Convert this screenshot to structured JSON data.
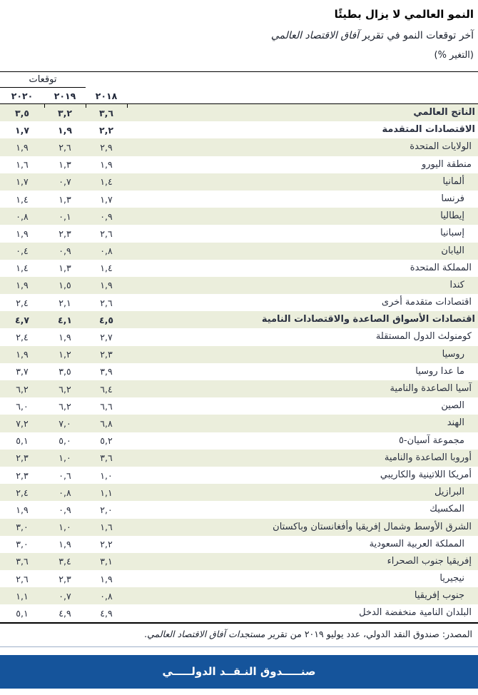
{
  "header": {
    "title": "النمو العالمي لا يزال بطيئًا",
    "subtitle_prefix": "آخر توقعات النمو في تقرير ",
    "subtitle_italic": "آفاق الاقتصاد العالمي",
    "unit_note": "(التغير %)"
  },
  "table": {
    "projections_label": "توقعات",
    "years": {
      "y2018": "٢٠١٨",
      "y2019": "٢٠١٩",
      "y2020": "٢٠٢٠"
    },
    "rows": [
      {
        "label": "الناتج العالمي",
        "bold": true,
        "indent": 0,
        "y2018": "٣,٦",
        "y2019": "٣,٢",
        "y2020": "٣,٥"
      },
      {
        "label": "الاقتصادات المتقدمة",
        "bold": true,
        "indent": 0,
        "y2018": "٢,٢",
        "y2019": "١,٩",
        "y2020": "١,٧"
      },
      {
        "label": "الولايات المتحدة",
        "bold": false,
        "indent": 1,
        "y2018": "٢,٩",
        "y2019": "٢,٦",
        "y2020": "١,٩"
      },
      {
        "label": "منطقة اليورو",
        "bold": false,
        "indent": 1,
        "y2018": "١,٩",
        "y2019": "١,٣",
        "y2020": "١,٦"
      },
      {
        "label": "ألمانيا",
        "bold": false,
        "indent": 2,
        "y2018": "١,٤",
        "y2019": "٠,٧",
        "y2020": "١,٧"
      },
      {
        "label": "فرنسا",
        "bold": false,
        "indent": 2,
        "y2018": "١,٧",
        "y2019": "١,٣",
        "y2020": "١,٤"
      },
      {
        "label": "إيطاليا",
        "bold": false,
        "indent": 2,
        "y2018": "٠,٩",
        "y2019": "٠,١",
        "y2020": "٠,٨"
      },
      {
        "label": "إسبانيا",
        "bold": false,
        "indent": 2,
        "y2018": "٢,٦",
        "y2019": "٢,٣",
        "y2020": "١,٩"
      },
      {
        "label": "اليابان",
        "bold": false,
        "indent": 2,
        "y2018": "٠,٨",
        "y2019": "٠,٩",
        "y2020": "٠,٤"
      },
      {
        "label": "المملكة المتحدة",
        "bold": false,
        "indent": 1,
        "y2018": "١,٤",
        "y2019": "١,٣",
        "y2020": "١,٤"
      },
      {
        "label": "كندا",
        "bold": false,
        "indent": 2,
        "y2018": "١,٩",
        "y2019": "١,٥",
        "y2020": "١,٩"
      },
      {
        "label": "اقتصادات متقدمة أخرى",
        "bold": false,
        "indent": 1,
        "y2018": "٢,٦",
        "y2019": "٢,١",
        "y2020": "٢,٤"
      },
      {
        "label": "اقتصادات الأسواق الصاعدة والاقتصادات النامية",
        "bold": true,
        "indent": 0,
        "y2018": "٤,٥",
        "y2019": "٤,١",
        "y2020": "٤,٧"
      },
      {
        "label": "كومنولث الدول المستقلة",
        "bold": false,
        "indent": 1,
        "y2018": "٢,٧",
        "y2019": "١,٩",
        "y2020": "٢,٤"
      },
      {
        "label": "روسيا",
        "bold": false,
        "indent": 2,
        "y2018": "٢,٣",
        "y2019": "١,٢",
        "y2020": "١,٩"
      },
      {
        "label": "ما عدا روسيا",
        "bold": false,
        "indent": 2,
        "y2018": "٣,٩",
        "y2019": "٣,٥",
        "y2020": "٣,٧"
      },
      {
        "label": "آسيا الصاعدة والنامية",
        "bold": false,
        "indent": 1,
        "y2018": "٦,٤",
        "y2019": "٦,٢",
        "y2020": "٦,٢"
      },
      {
        "label": "الصين",
        "bold": false,
        "indent": 2,
        "y2018": "٦,٦",
        "y2019": "٦,٢",
        "y2020": "٦,٠"
      },
      {
        "label": "الهند",
        "bold": false,
        "indent": 2,
        "y2018": "٦,٨",
        "y2019": "٧,٠",
        "y2020": "٧,٢"
      },
      {
        "label": "مجموعة آسيان-٥",
        "bold": false,
        "indent": 2,
        "y2018": "٥,٢",
        "y2019": "٥,٠",
        "y2020": "٥,١"
      },
      {
        "label": "أوروبا الصاعدة والنامية",
        "bold": false,
        "indent": 1,
        "y2018": "٣,٦",
        "y2019": "١,٠",
        "y2020": "٢,٣"
      },
      {
        "label": "أمريكا اللاتينية والكاريبي",
        "bold": false,
        "indent": 1,
        "y2018": "١,٠",
        "y2019": "٠,٦",
        "y2020": "٢,٣"
      },
      {
        "label": "البرازيل",
        "bold": false,
        "indent": 2,
        "y2018": "١,١",
        "y2019": "٠,٨",
        "y2020": "٢,٤"
      },
      {
        "label": "المكسيك",
        "bold": false,
        "indent": 2,
        "y2018": "٢,٠",
        "y2019": "٠,٩",
        "y2020": "١,٩"
      },
      {
        "label": "الشرق الأوسط وشمال إفريقيا وأفغانستان وباكستان",
        "bold": false,
        "indent": 1,
        "y2018": "١,٦",
        "y2019": "١,٠",
        "y2020": "٣,٠"
      },
      {
        "label": "المملكة العربية السعودية",
        "bold": false,
        "indent": 2,
        "y2018": "٢,٢",
        "y2019": "١,٩",
        "y2020": "٣,٠"
      },
      {
        "label": "إفريقيا جنوب الصحراء",
        "bold": false,
        "indent": 1,
        "y2018": "٣,١",
        "y2019": "٣,٤",
        "y2020": "٣,٦"
      },
      {
        "label": "نيجيريا",
        "bold": false,
        "indent": 2,
        "y2018": "١,٩",
        "y2019": "٢,٣",
        "y2020": "٢,٦"
      },
      {
        "label": "جنوب إفريقيا",
        "bold": false,
        "indent": 2,
        "y2018": "٠,٨",
        "y2019": "٠,٧",
        "y2020": "١,١"
      },
      {
        "label": "البلدان النامية منخفضة الدخل",
        "bold": false,
        "indent": 1,
        "y2018": "٤,٩",
        "y2019": "٤,٩",
        "y2020": "٥,١"
      }
    ]
  },
  "source": {
    "prefix": "المصدر: صندوق النقد الدولي، عدد يوليو ٢٠١٩ من تقرير ",
    "italic": "مستجدات آفاق الاقتصاد العالمي",
    "suffix": "."
  },
  "footer": {
    "bank_name": "صنـــــدوق النـقــد الدولـــــي"
  },
  "colors": {
    "banner_blue": "#15549b",
    "row_stripe": "#ebeedc",
    "text_dark": "#2a3040"
  }
}
